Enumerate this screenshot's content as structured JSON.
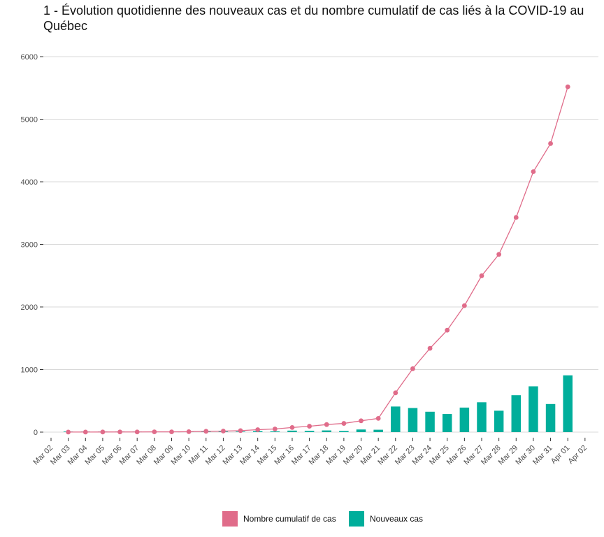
{
  "chart_data": {
    "type": "bar+line",
    "title": "1 - Évolution quotidienne des nouveaux cas et du nombre cumulatif de cas liés à la COVID-19 au Québec",
    "xlabel": "",
    "ylabel": "",
    "ylim": [
      0,
      6000
    ],
    "y_ticks": [
      0,
      1000,
      2000,
      3000,
      4000,
      5000,
      6000
    ],
    "x_tick_labels": [
      "Mar 02",
      "Mar 03",
      "Mar 04",
      "Mar 05",
      "Mar 06",
      "Mar 07",
      "Mar 08",
      "Mar 09",
      "Mar 10",
      "Mar 11",
      "Mar 12",
      "Mar 13",
      "Mar 14",
      "Mar 15",
      "Mar 16",
      "Mar 17",
      "Mar 18",
      "Mar 19",
      "Mar 20",
      "Mar 21",
      "Mar 22",
      "Mar 23",
      "Mar 24",
      "Mar 25",
      "Mar 26",
      "Mar 27",
      "Mar 28",
      "Mar 29",
      "Mar 30",
      "Mar 31",
      "Apr 01",
      "Apr 02"
    ],
    "x": [
      "Mar 03",
      "Mar 04",
      "Mar 05",
      "Mar 06",
      "Mar 07",
      "Mar 08",
      "Mar 09",
      "Mar 10",
      "Mar 11",
      "Mar 12",
      "Mar 13",
      "Mar 14",
      "Mar 15",
      "Mar 16",
      "Mar 17",
      "Mar 18",
      "Mar 19",
      "Mar 20",
      "Mar 21",
      "Mar 22",
      "Mar 23",
      "Mar 24",
      "Mar 25",
      "Mar 26",
      "Mar 27",
      "Mar 28",
      "Mar 29",
      "Mar 30",
      "Mar 31",
      "Apr 01"
    ],
    "grid": true,
    "legend_position": "bottom",
    "series": [
      {
        "name": "Nombre cumulatif de cas",
        "type": "line",
        "color": "#e06c8a",
        "values": [
          1,
          1,
          2,
          3,
          3,
          4,
          4,
          7,
          13,
          17,
          24,
          39,
          50,
          74,
          94,
          121,
          139,
          181,
          219,
          628,
          1013,
          1339,
          1629,
          2021,
          2498,
          2840,
          3430,
          4162,
          4611,
          5518
        ]
      },
      {
        "name": "Nouveaux cas",
        "type": "bar",
        "color": "#00ae9b",
        "values": [
          1,
          0,
          1,
          1,
          0,
          1,
          0,
          3,
          6,
          4,
          7,
          15,
          11,
          24,
          20,
          27,
          18,
          42,
          38,
          409,
          385,
          326,
          290,
          392,
          477,
          342,
          590,
          732,
          449,
          907
        ]
      }
    ]
  }
}
